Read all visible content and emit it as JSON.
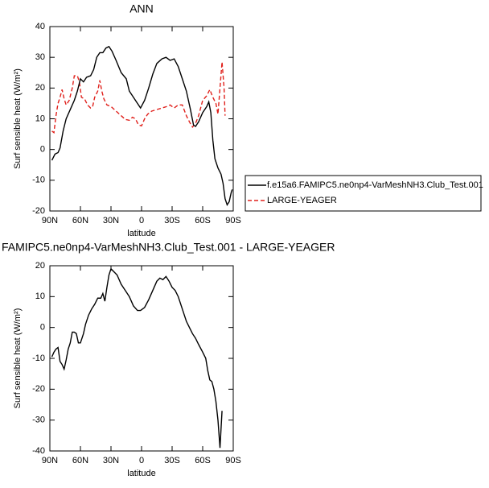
{
  "chart_data": [
    {
      "type": "line",
      "title": "ANN",
      "xlabel": "latitude",
      "ylabel": "Surf sensible heat (W/m²)",
      "xlim": [
        90,
        -90
      ],
      "xticks": [
        {
          "value": 90,
          "label": "90N"
        },
        {
          "value": 60,
          "label": "60N"
        },
        {
          "value": 30,
          "label": "30N"
        },
        0,
        {
          "value": -30,
          "label": "30S"
        },
        {
          "value": -60,
          "label": "60S"
        },
        {
          "value": -90,
          "label": "90S"
        }
      ],
      "ylim": [
        -20,
        40
      ],
      "yticks": [
        -20,
        -10,
        0,
        10,
        20,
        30,
        40
      ],
      "legend": "right",
      "series": [
        {
          "name": "LARGE-YEAGER",
          "color": "#e0201b",
          "dash": "dashed",
          "x": [
            88,
            86,
            84,
            82,
            80,
            78,
            76,
            74,
            71,
            68,
            66,
            63,
            61,
            59,
            56,
            53,
            50,
            48,
            46,
            43,
            41,
            39,
            37,
            34,
            30,
            25,
            20,
            16,
            12,
            9,
            6,
            3,
            0,
            -3,
            -6,
            -10,
            -15,
            -20,
            -25,
            -28,
            -32,
            -36,
            -40,
            -44,
            -47,
            -50,
            -53,
            -56,
            -60,
            -64,
            -67,
            -70,
            -73,
            -75,
            -77,
            -79,
            -81,
            -82
          ],
          "values": [
            6,
            5.5,
            11,
            15,
            17,
            19.5,
            16.5,
            14.5,
            16,
            20,
            24,
            24,
            22,
            17,
            16.5,
            14.5,
            13.5,
            14,
            17,
            19,
            22.5,
            19,
            16.5,
            14.5,
            14,
            12.5,
            11,
            9.8,
            9.5,
            10.5,
            10,
            8,
            7.7,
            10,
            11.5,
            12.5,
            13,
            13.5,
            14,
            14.5,
            13.5,
            14.5,
            14.5,
            11,
            9,
            7.3,
            8.5,
            11,
            16,
            17.5,
            19.5,
            17,
            15,
            11.5,
            20,
            28.5,
            20,
            11
          ]
        },
        {
          "name": "f.e15a6.FAMIPC5.ne0np4-VarMeshNH3.Club_Test.001",
          "color": "#000000",
          "dash": "solid",
          "x": [
            88,
            85,
            82,
            80,
            77,
            74,
            70,
            66,
            63,
            60,
            57,
            54,
            50,
            47,
            44,
            41,
            38,
            35,
            32,
            29,
            25,
            20,
            15,
            12,
            8,
            4,
            1,
            -3,
            -7,
            -11,
            -15,
            -20,
            -24,
            -28,
            -32,
            -36,
            -40,
            -44,
            -48,
            -51,
            -53,
            -56,
            -60,
            -64,
            -66,
            -68,
            -70,
            -72,
            -75,
            -78,
            -80,
            -82,
            -84,
            -86,
            -88,
            -89
          ],
          "values": [
            -3.5,
            -1.5,
            -1,
            0.5,
            6,
            10,
            13,
            16,
            19,
            23,
            22,
            23.5,
            24,
            26,
            30,
            31.5,
            31.5,
            33,
            33.5,
            32,
            29,
            25,
            23,
            19,
            17,
            15,
            13.5,
            16,
            20,
            24.5,
            28,
            29.5,
            30,
            29,
            29.5,
            27,
            23,
            19,
            13,
            8,
            7.5,
            9,
            12,
            14,
            15.5,
            12,
            3,
            -3,
            -6,
            -8,
            -11,
            -16,
            -18,
            -17,
            -14,
            -13
          ]
        }
      ]
    },
    {
      "type": "line",
      "title": "FAMIPC5.ne0np4-VarMeshNH3.Club_Test.001 - LARGE-YEAGER",
      "xlabel": "latitude",
      "ylabel": "Surf sensible heat (W/m²)",
      "xlim": [
        90,
        -90
      ],
      "xticks": [
        {
          "value": 90,
          "label": "90N"
        },
        {
          "value": 60,
          "label": "60N"
        },
        {
          "value": 30,
          "label": "30N"
        },
        0,
        {
          "value": -30,
          "label": "30S"
        },
        {
          "value": -60,
          "label": "60S"
        },
        {
          "value": -90,
          "label": "90S"
        }
      ],
      "ylim": [
        -40,
        20
      ],
      "yticks": [
        -40,
        -30,
        -20,
        -10,
        0,
        10,
        20
      ],
      "series": [
        {
          "color": "#000000",
          "dash": "solid",
          "x": [
            88,
            86,
            84,
            82,
            80,
            78,
            76,
            74,
            72,
            70,
            68,
            66,
            64,
            62,
            60,
            57,
            55,
            52,
            49,
            46,
            43,
            40,
            38,
            36,
            34,
            32,
            30,
            27,
            24,
            20,
            16,
            12,
            8,
            4,
            1,
            -3,
            -7,
            -11,
            -15,
            -18,
            -21,
            -24,
            -27,
            -30,
            -33,
            -36,
            -40,
            -44,
            -47,
            -50,
            -53,
            -56,
            -60,
            -63,
            -65,
            -67,
            -69,
            -71,
            -73,
            -75,
            -77,
            -79
          ],
          "values": [
            -9.5,
            -8,
            -7,
            -6.5,
            -11,
            -12,
            -13.5,
            -10.5,
            -7,
            -5,
            -1.5,
            -1.5,
            -2,
            -5,
            -5,
            -2,
            1,
            4,
            6,
            7.5,
            9.5,
            9.5,
            11,
            8.5,
            13,
            17,
            19,
            18,
            17,
            14,
            12,
            10,
            7,
            5.5,
            5.5,
            6.5,
            9,
            12,
            15,
            16,
            15.5,
            16.5,
            15,
            13,
            12,
            10,
            6,
            2,
            0,
            -2,
            -3.5,
            -5.5,
            -8,
            -10,
            -14,
            -17,
            -17.5,
            -20,
            -24,
            -30,
            -39,
            -27
          ]
        }
      ]
    }
  ]
}
